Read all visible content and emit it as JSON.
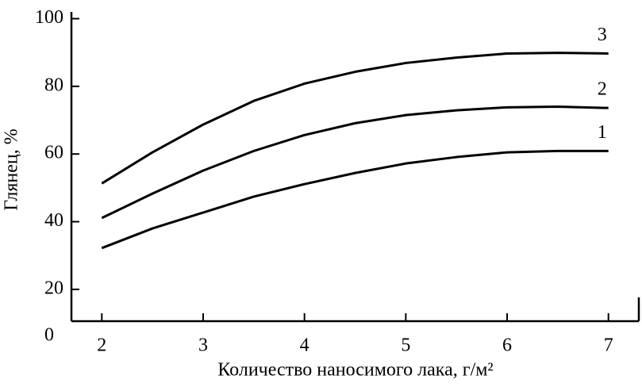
{
  "chart_data": {
    "type": "line",
    "xlabel": "Количество наносимого лака, г/м²",
    "ylabel": "Глянец, %",
    "origin_label": "0",
    "x": [
      2,
      2.5,
      3,
      3.5,
      4,
      4.5,
      5,
      5.5,
      6,
      6.5,
      7
    ],
    "series": [
      {
        "name": "1",
        "color": "#000000",
        "values": [
          32.2,
          38,
          42.7,
          47.4,
          51.1,
          54.4,
          57.2,
          59.1,
          60.5,
          60.9,
          60.9
        ]
      },
      {
        "name": "2",
        "color": "#000000",
        "values": [
          41.1,
          48.3,
          55.1,
          60.9,
          65.6,
          69.1,
          71.5,
          72.9,
          73.8,
          74,
          73.6
        ]
      },
      {
        "name": "3",
        "color": "#000000",
        "values": [
          51.3,
          60.5,
          68.7,
          75.7,
          80.8,
          84.3,
          86.9,
          88.5,
          89.7,
          89.9,
          89.7
        ]
      }
    ],
    "xlim": [
      1.7,
      7.3
    ],
    "xticks": [
      2,
      3,
      4,
      5,
      6,
      7
    ],
    "ylim": [
      10.6,
      102
    ],
    "yticks": [
      20,
      40,
      60,
      80,
      100
    ],
    "grid": false
  }
}
